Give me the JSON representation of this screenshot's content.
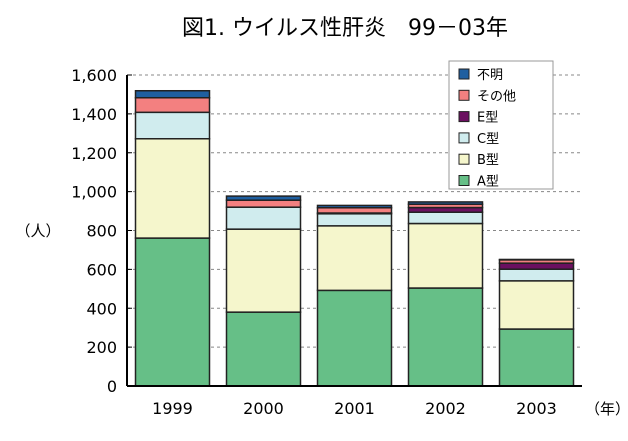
{
  "chart_data": {
    "type": "bar",
    "stacked": true,
    "title": "図1. ウイルス性肝炎　99－03年",
    "ylabel": "（人）",
    "xlabel_unit": "（年）",
    "categories": [
      "1999",
      "2000",
      "2001",
      "2002",
      "2003"
    ],
    "ylim": [
      0,
      1600
    ],
    "yticks": [
      "0",
      "200",
      "400",
      "600",
      "800",
      "1,000",
      "1,200",
      "1,400",
      "1,600"
    ],
    "grid": "horizontal dashed",
    "legend_position": "top-right",
    "series": [
      {
        "name": "A型",
        "color": "#66bf87",
        "values": [
          761,
          380,
          492,
          504,
          293
        ]
      },
      {
        "name": "B型",
        "color": "#f5f6cc",
        "values": [
          511,
          427,
          332,
          332,
          248
        ]
      },
      {
        "name": "C型",
        "color": "#d0ecee",
        "values": [
          136,
          113,
          62,
          58,
          60
        ]
      },
      {
        "name": "E型",
        "color": "#6b1060",
        "values": [
          0,
          0,
          4,
          24,
          31
        ]
      },
      {
        "name": "その他",
        "color": "#f38080",
        "values": [
          75,
          36,
          27,
          17,
          17
        ]
      },
      {
        "name": "不明",
        "color": "#1f5fa0",
        "values": [
          36,
          21,
          12,
          12,
          2
        ]
      }
    ]
  }
}
